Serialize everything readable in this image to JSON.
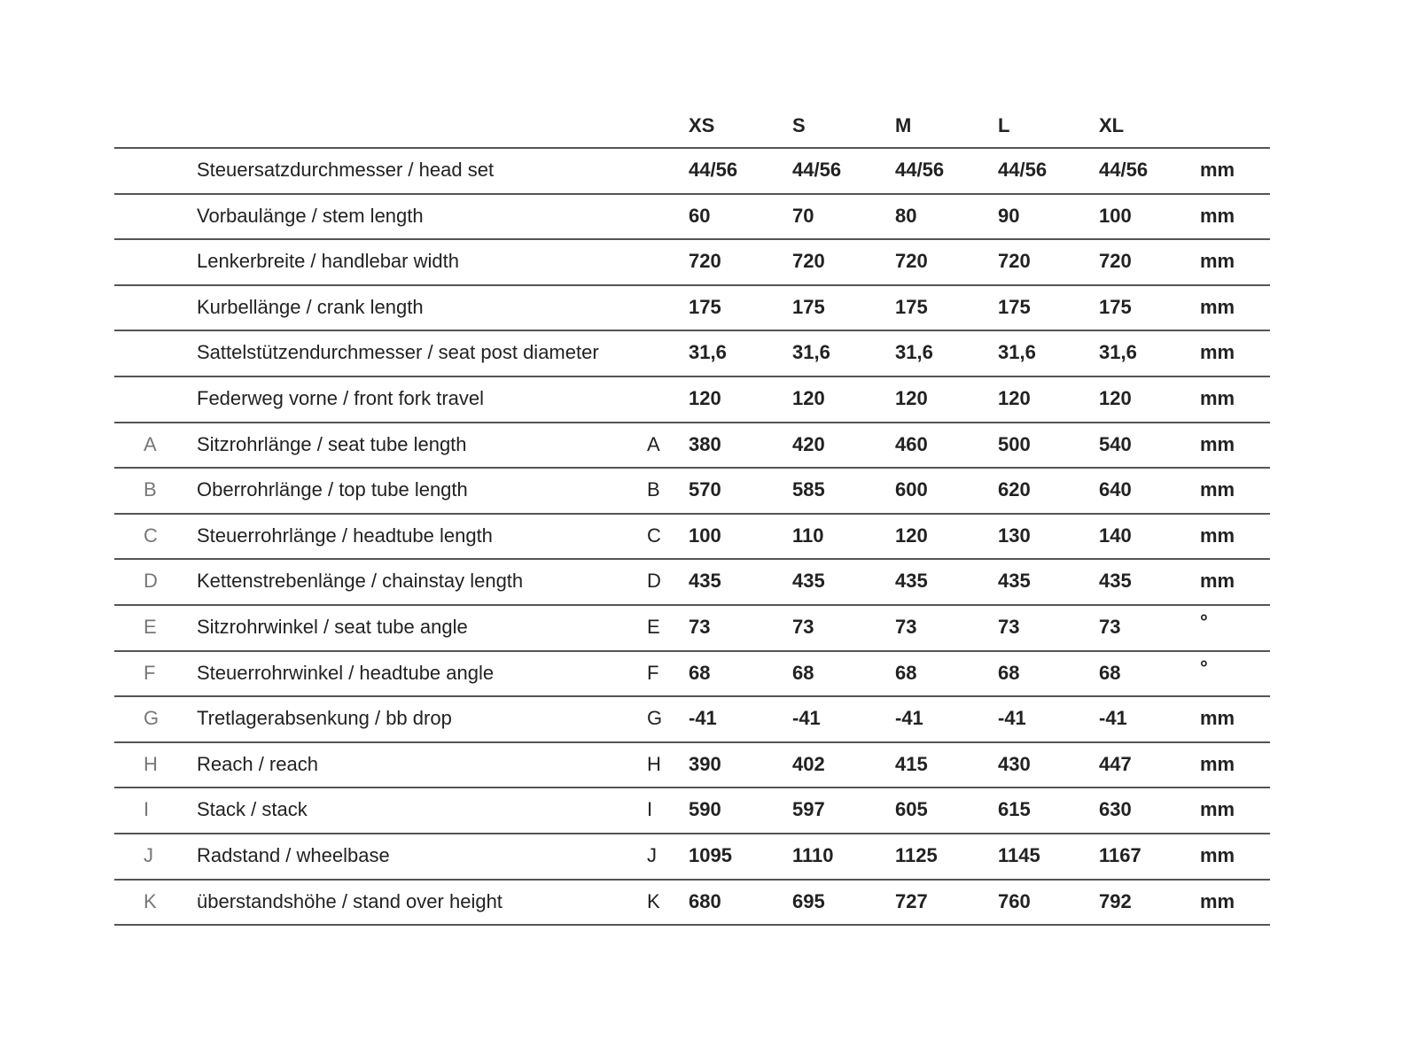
{
  "table": {
    "headers": [
      "XS",
      "S",
      "M",
      "L",
      "XL"
    ],
    "rows": [
      {
        "label": "Steuersatzdurchmesser / head set",
        "values": [
          "44/56",
          "44/56",
          "44/56",
          "44/56",
          "44/56"
        ],
        "unit": "mm"
      },
      {
        "label": "Vorbaulänge / stem length",
        "values": [
          "60",
          "70",
          "80",
          "90",
          "100"
        ],
        "unit": "mm"
      },
      {
        "label": "Lenkerbreite / handlebar width",
        "values": [
          "720",
          "720",
          "720",
          "720",
          "720"
        ],
        "unit": "mm"
      },
      {
        "label": "Kurbellänge / crank length",
        "values": [
          "175",
          "175",
          "175",
          "175",
          "175"
        ],
        "unit": "mm"
      },
      {
        "label": "Sattelstützendurchmesser / seat post diameter",
        "values": [
          "31,6",
          "31,6",
          "31,6",
          "31,6",
          "31,6"
        ],
        "unit": "mm"
      },
      {
        "label": "Federweg vorne / front fork travel",
        "values": [
          "120",
          "120",
          "120",
          "120",
          "120"
        ],
        "unit": "mm"
      },
      {
        "letter": "A",
        "label": "Sitzrohrlänge / seat tube length",
        "values": [
          "380",
          "420",
          "460",
          "500",
          "540"
        ],
        "unit": "mm"
      },
      {
        "letter": "B",
        "label": "Oberrohrlänge / top tube length",
        "values": [
          "570",
          "585",
          "600",
          "620",
          "640"
        ],
        "unit": "mm"
      },
      {
        "letter": "C",
        "label": "Steuerrohrlänge / headtube length",
        "values": [
          "100",
          "110",
          "120",
          "130",
          "140"
        ],
        "unit": "mm"
      },
      {
        "letter": "D",
        "label": "Kettenstrebenlänge / chainstay length",
        "values": [
          "435",
          "435",
          "435",
          "435",
          "435"
        ],
        "unit": "mm"
      },
      {
        "letter": "E",
        "label": "Sitzrohrwinkel / seat tube angle",
        "values": [
          "73",
          "73",
          "73",
          "73",
          "73"
        ],
        "unit": "°"
      },
      {
        "letter": "F",
        "label": "Steuerrohrwinkel / headtube angle",
        "values": [
          "68",
          "68",
          "68",
          "68",
          "68"
        ],
        "unit": "°"
      },
      {
        "letter": "G",
        "label": "Tretlagerabsenkung / bb drop",
        "values": [
          "-41",
          "-41",
          "-41",
          "-41",
          "-41"
        ],
        "unit": "mm"
      },
      {
        "letter": "H",
        "label": "Reach / reach",
        "values": [
          "390",
          "402",
          "415",
          "430",
          "447"
        ],
        "unit": "mm"
      },
      {
        "letter": "I",
        "label": "Stack / stack",
        "values": [
          "590",
          "597",
          "605",
          "615",
          "630"
        ],
        "unit": "mm"
      },
      {
        "letter": "J",
        "label": "Radstand / wheelbase",
        "values": [
          "1095",
          "1110",
          "1125",
          "1145",
          "1167"
        ],
        "unit": "mm"
      },
      {
        "letter": "K",
        "label": "überstandshöhe / stand over height",
        "values": [
          "680",
          "695",
          "727",
          "760",
          "792"
        ],
        "unit": "mm"
      }
    ]
  }
}
